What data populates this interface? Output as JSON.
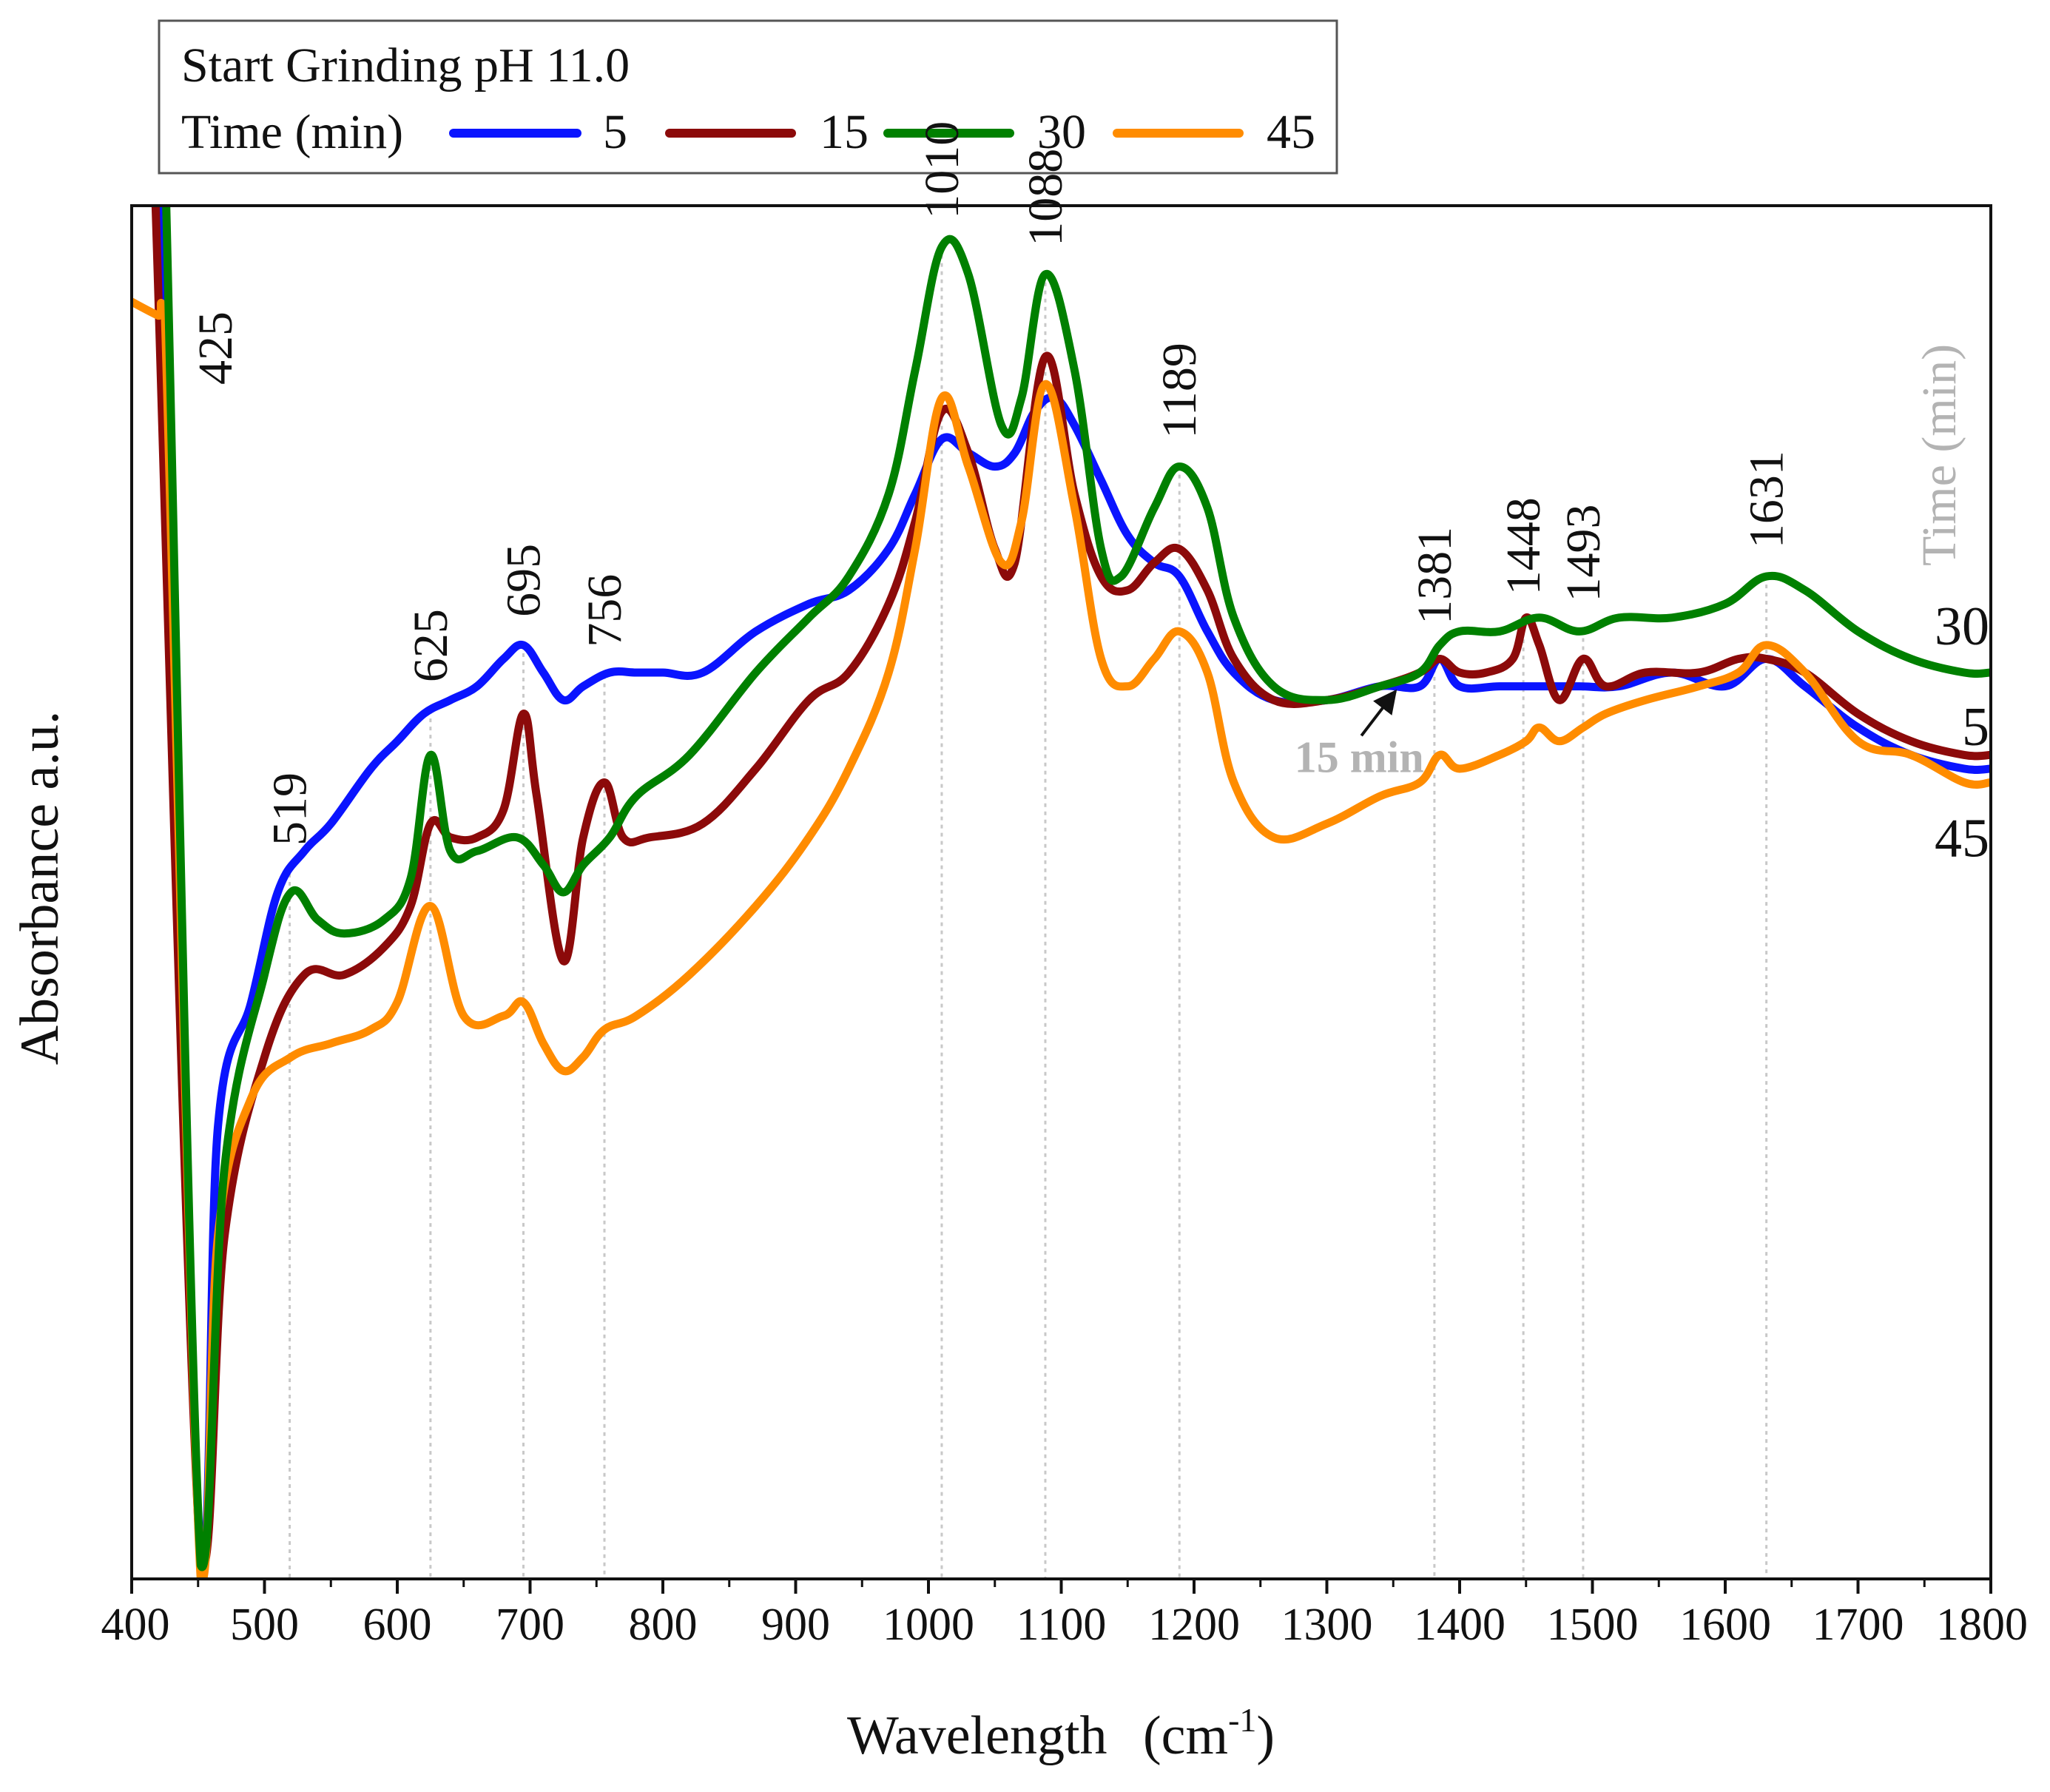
{
  "chart_data": {
    "type": "line",
    "title": "",
    "xlabel": "Wavelength",
    "xunit_base": "(cm",
    "xunit_exp": "-1",
    "xunit_close": ")",
    "ylabel": "Absorbance a.u.",
    "xlim": [
      400,
      1800
    ],
    "ylim": [
      0,
      100
    ],
    "xticks": [
      400,
      500,
      600,
      700,
      800,
      900,
      1000,
      1100,
      1200,
      1300,
      1400,
      1500,
      1600,
      1700,
      1800
    ],
    "legend": {
      "title": "Start Grinding pH 11.0",
      "label_prefix": "Time (min)",
      "position": "top-left-outside"
    },
    "peak_lines": [
      519,
      625,
      695,
      756,
      1010,
      1088,
      1189,
      1381,
      1448,
      1493,
      1631
    ],
    "peak_labels": [
      {
        "text": "425",
        "x": 425
      },
      {
        "text": "519",
        "x": 519
      },
      {
        "text": "625",
        "x": 625
      },
      {
        "text": "695",
        "x": 695
      },
      {
        "text": "756",
        "x": 756
      },
      {
        "text": "1010",
        "x": 1010
      },
      {
        "text": "1088",
        "x": 1088
      },
      {
        "text": "1189",
        "x": 1189
      },
      {
        "text": "1381",
        "x": 1381
      },
      {
        "text": "1448",
        "x": 1448
      },
      {
        "text": "1493",
        "x": 1493
      },
      {
        "text": "1631",
        "x": 1631
      }
    ],
    "series": [
      {
        "name": "5",
        "color": "#0a14ff",
        "x": [
          420,
          452,
          465,
          490,
          510,
          530,
          550,
          580,
          600,
          620,
          640,
          660,
          680,
          695,
          710,
          725,
          740,
          760,
          780,
          800,
          830,
          870,
          910,
          940,
          970,
          990,
          1010,
          1030,
          1050,
          1065,
          1080,
          1095,
          1110,
          1130,
          1150,
          1170,
          1189,
          1210,
          1230,
          1260,
          1300,
          1340,
          1370,
          1385,
          1400,
          1430,
          1460,
          1490,
          1520,
          1560,
          1600,
          1631,
          1660,
          1700,
          1740,
          1780,
          1800
        ],
        "y": [
          100,
          1,
          33,
          42,
          50,
          53,
          55,
          59,
          61,
          63,
          64,
          65,
          67,
          68,
          66,
          64,
          65,
          66,
          66,
          66,
          66,
          69,
          71,
          72,
          75,
          79,
          83,
          82,
          81,
          82,
          85,
          86,
          84,
          80,
          76,
          74,
          73,
          69,
          66,
          64,
          64,
          65,
          65,
          67,
          65,
          65,
          65,
          65,
          65,
          66,
          65,
          67,
          65,
          62,
          60,
          59,
          59
        ]
      },
      {
        "name": "15",
        "color": "#8c0a0a",
        "x": [
          418,
          452,
          470,
          500,
          530,
          560,
          590,
          610,
          625,
          640,
          660,
          680,
          695,
          705,
          725,
          740,
          756,
          770,
          790,
          830,
          870,
          910,
          940,
          970,
          990,
          1010,
          1030,
          1050,
          1065,
          1088,
          1110,
          1130,
          1150,
          1170,
          1189,
          1210,
          1230,
          1260,
          1300,
          1340,
          1370,
          1385,
          1400,
          1420,
          1440,
          1450,
          1460,
          1475,
          1493,
          1510,
          1540,
          1580,
          1610,
          1631,
          1660,
          1700,
          1740,
          1780,
          1800
        ],
        "y": [
          100,
          1,
          25,
          38,
          44,
          44,
          46,
          49,
          55,
          54,
          54,
          56,
          63,
          57,
          45,
          54,
          58,
          54,
          54,
          55,
          59,
          64,
          66,
          71,
          77,
          85,
          82,
          75,
          74,
          89,
          79,
          73,
          72,
          74,
          75,
          72,
          67,
          64,
          64,
          65,
          66,
          67,
          66,
          66,
          67,
          70,
          68,
          64,
          67,
          65,
          66,
          66,
          67,
          67,
          66,
          63,
          61,
          60,
          60
        ]
      },
      {
        "name": "30",
        "color": "#008000",
        "x": [
          426,
          452,
          470,
          500,
          520,
          540,
          560,
          590,
          610,
          625,
          640,
          660,
          690,
          710,
          725,
          740,
          760,
          780,
          820,
          870,
          910,
          940,
          970,
          990,
          1010,
          1030,
          1055,
          1070,
          1088,
          1110,
          1130,
          1145,
          1170,
          1189,
          1210,
          1230,
          1260,
          1300,
          1340,
          1370,
          1385,
          1400,
          1430,
          1460,
          1490,
          1520,
          1560,
          1600,
          1631,
          1660,
          1700,
          1740,
          1780,
          1800
        ],
        "y": [
          100,
          1,
          30,
          44,
          50,
          48,
          47,
          48,
          51,
          60,
          53,
          53,
          54,
          52,
          50,
          52,
          54,
          57,
          60,
          66,
          70,
          73,
          79,
          88,
          97,
          95,
          84,
          86,
          95,
          88,
          75,
          73,
          78,
          81,
          78,
          70,
          65,
          64,
          65,
          66,
          68,
          69,
          69,
          70,
          69,
          70,
          70,
          71,
          73,
          72,
          69,
          67,
          66,
          66
        ]
      },
      {
        "name": "45",
        "color": "#ff8c00",
        "x": [
          400,
          420,
          425,
          452,
          465,
          490,
          520,
          550,
          580,
          600,
          625,
          650,
          680,
          695,
          710,
          725,
          740,
          756,
          780,
          820,
          870,
          910,
          940,
          970,
          990,
          1010,
          1030,
          1055,
          1070,
          1088,
          1110,
          1130,
          1150,
          1170,
          1189,
          1210,
          1230,
          1260,
          1300,
          1340,
          1370,
          1385,
          1400,
          1430,
          1450,
          1460,
          1475,
          1493,
          1510,
          1540,
          1580,
          1610,
          1631,
          1660,
          1700,
          1740,
          1780,
          1800
        ],
        "y": [
          93,
          92,
          92,
          0,
          25,
          35,
          38,
          39,
          40,
          42,
          49,
          41,
          41,
          42,
          39,
          37,
          38,
          40,
          41,
          44,
          49,
          54,
          59,
          66,
          75,
          86,
          81,
          74,
          77,
          87,
          78,
          67,
          65,
          67,
          69,
          66,
          58,
          54,
          55,
          57,
          58,
          60,
          59,
          60,
          61,
          62,
          61,
          62,
          63,
          64,
          65,
          66,
          68,
          66,
          61,
          60,
          58,
          58
        ]
      }
    ],
    "end_labels": [
      {
        "text": "30",
        "series": 2
      },
      {
        "text": "5",
        "series": 0
      },
      {
        "text": "45",
        "series": 3
      }
    ],
    "annotation": {
      "text": "15 min",
      "series": 1,
      "x": 1355
    },
    "side_label": "Time (min)"
  }
}
